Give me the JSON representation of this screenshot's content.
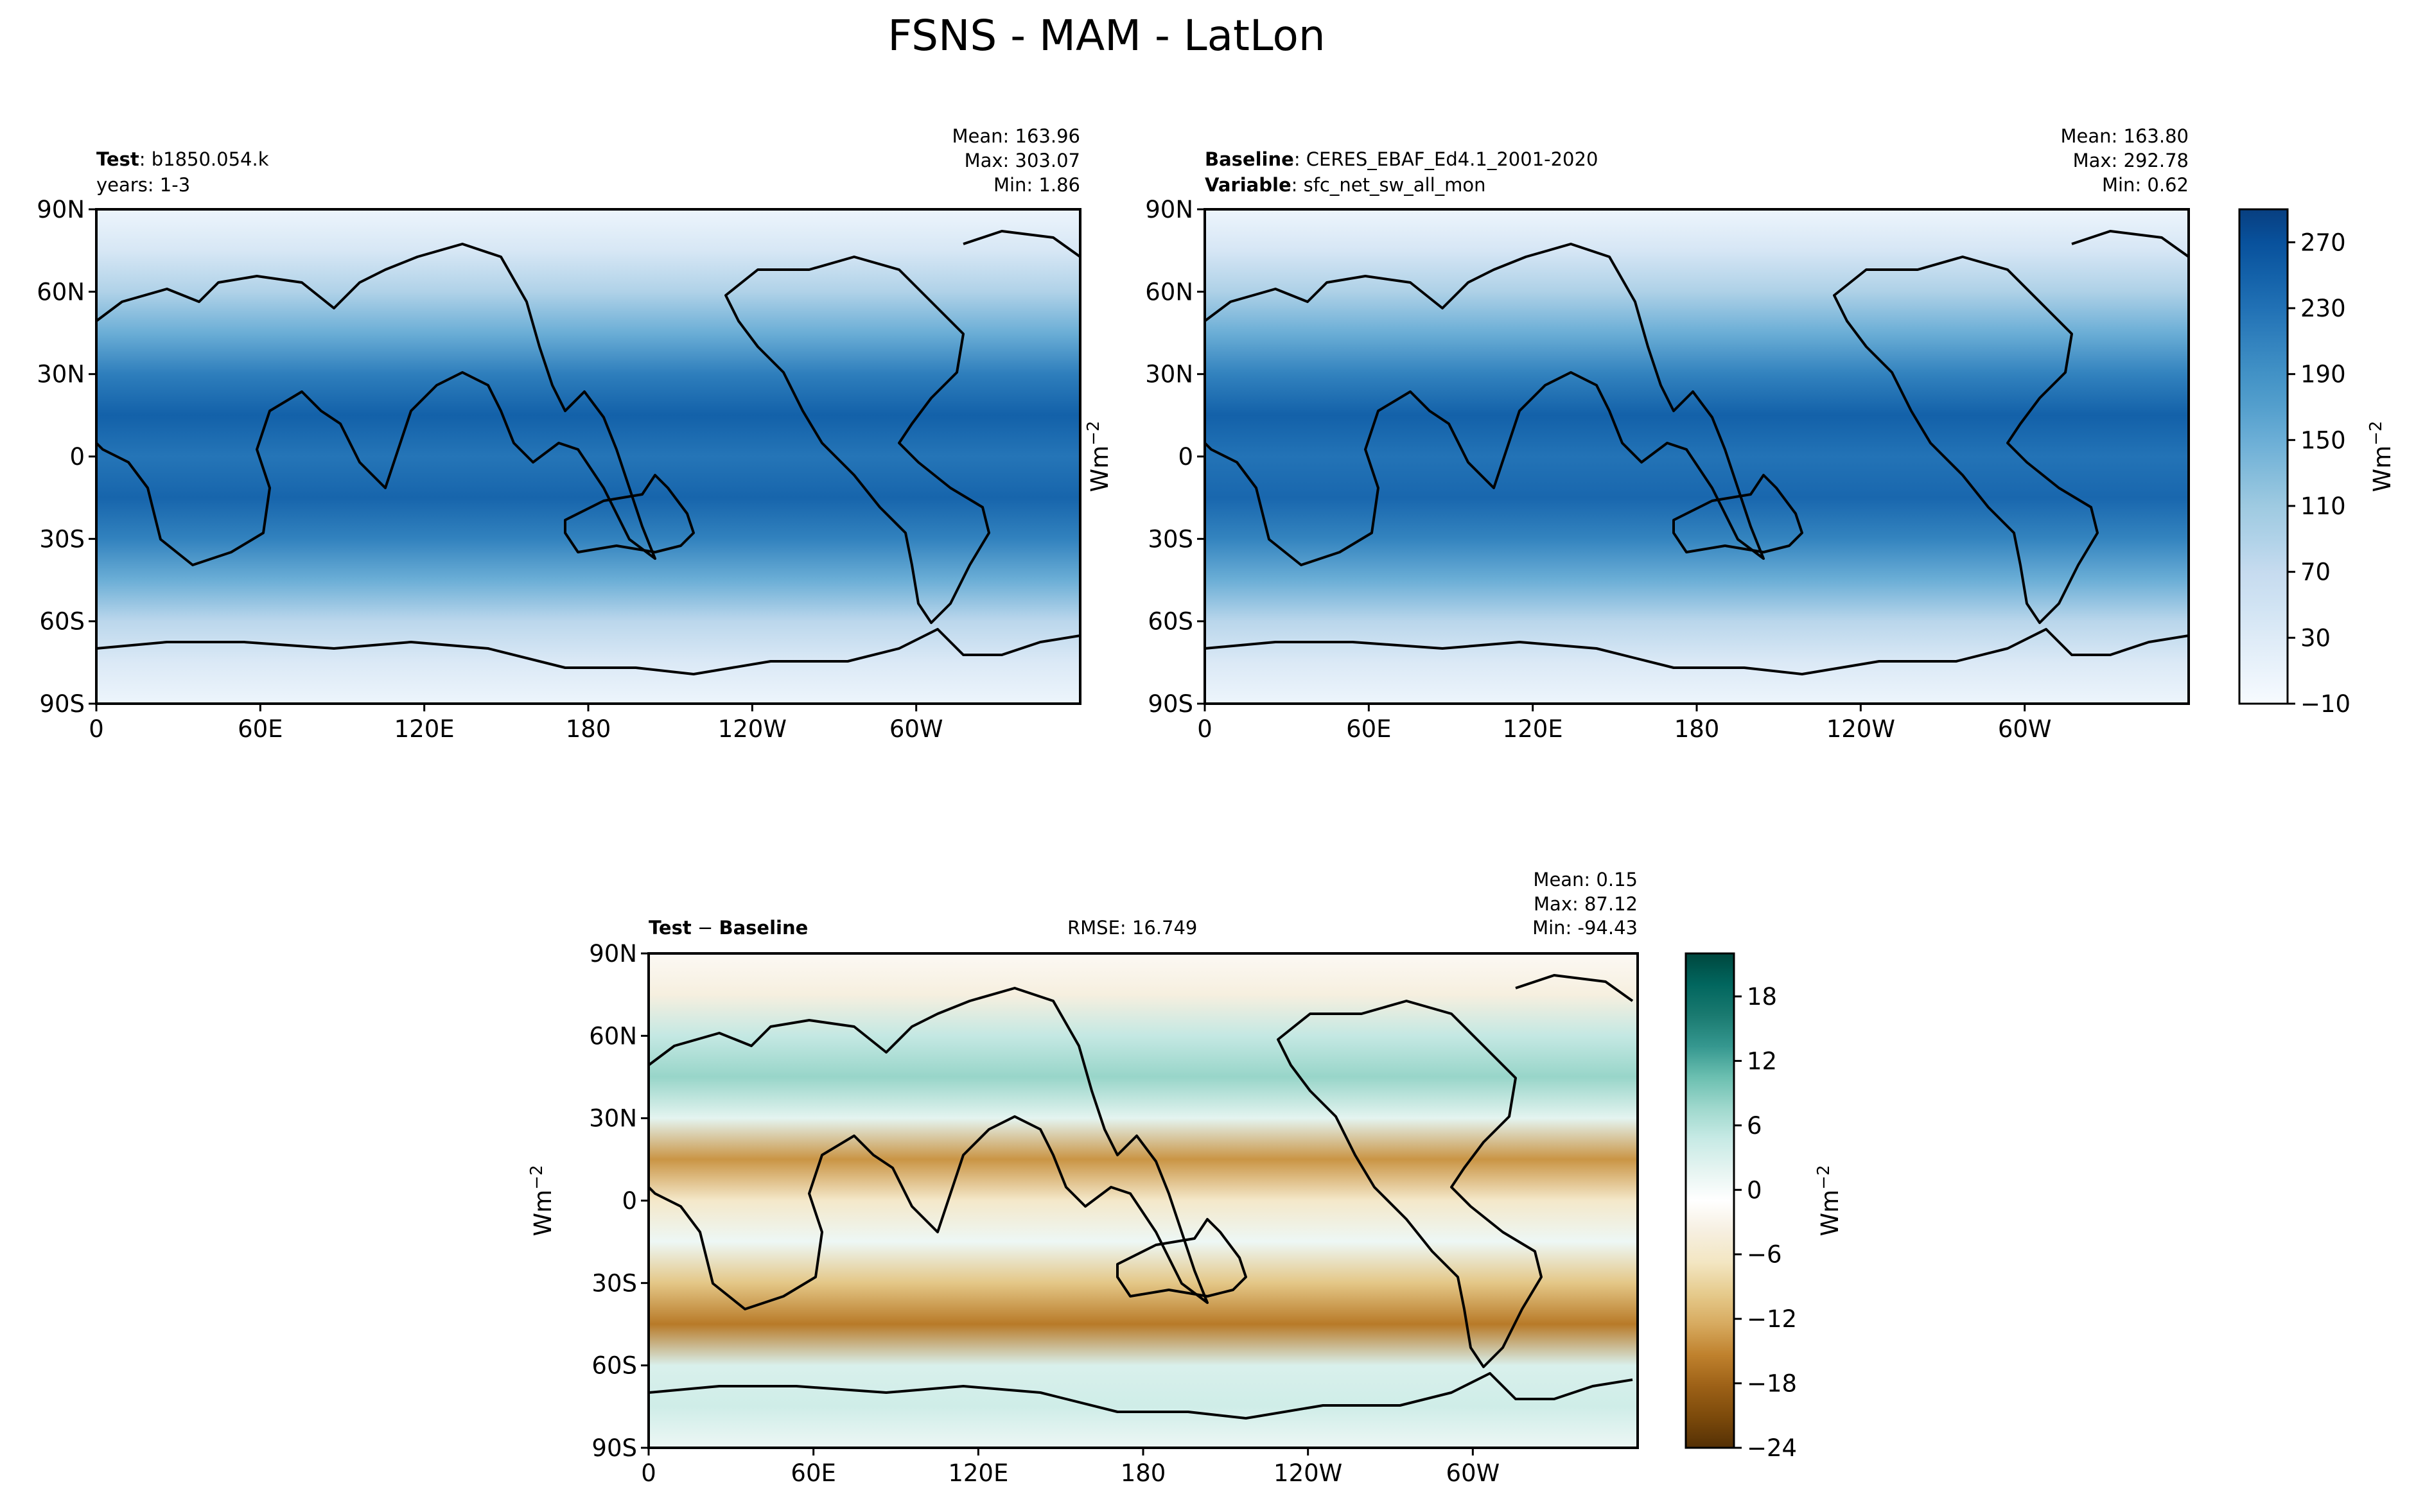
{
  "figure": {
    "title": "FSNS - MAM - LatLon"
  },
  "chart_data": [
    {
      "type": "heatmap",
      "panel": "test",
      "label_bold": "Test",
      "label_rest": ": b1850.054.k",
      "label_line2": "years: 1-3",
      "stats": {
        "mean": "Mean: 163.96",
        "max": "Max: 303.07",
        "min": "Min:  1.86"
      },
      "xlabel": "",
      "ylabel": "",
      "xticks": [
        "0",
        "60E",
        "120E",
        "180",
        "120W",
        "60W"
      ],
      "yticks": [
        "90N",
        "60N",
        "30N",
        "0",
        "30S",
        "60S",
        "90S"
      ],
      "xlim": [
        0,
        360
      ],
      "ylim": [
        -90,
        90
      ],
      "zonal_profile": {
        "lat": [
          90,
          75,
          60,
          45,
          30,
          15,
          0,
          -15,
          -30,
          -45,
          -60,
          -75,
          -90
        ],
        "value": [
          5,
          40,
          90,
          150,
          215,
          250,
          225,
          245,
          210,
          150,
          80,
          35,
          5
        ]
      }
    },
    {
      "type": "heatmap",
      "panel": "baseline",
      "label_bold": "Baseline",
      "label_rest": ": CERES_EBAF_Ed4.1_2001-2020",
      "label2_bold": "Variable",
      "label2_rest": ": sfc_net_sw_all_mon",
      "stats": {
        "mean": "Mean: 163.80",
        "max": "Max: 292.78",
        "min": "Min:  0.62"
      },
      "xlabel": "",
      "ylabel": "Wm",
      "ylabel_sup": "−2",
      "xticks": [
        "0",
        "60E",
        "120E",
        "180",
        "120W",
        "60W"
      ],
      "yticks": [
        "90N",
        "60N",
        "30N",
        "0",
        "30S",
        "60S",
        "90S"
      ],
      "xlim": [
        0,
        360
      ],
      "ylim": [
        -90,
        90
      ],
      "zonal_profile": {
        "lat": [
          90,
          75,
          60,
          45,
          30,
          15,
          0,
          -15,
          -30,
          -45,
          -60,
          -75,
          -90
        ],
        "value": [
          5,
          42,
          92,
          150,
          210,
          250,
          228,
          242,
          208,
          150,
          82,
          35,
          5
        ]
      },
      "colorbar": {
        "ticks": [
          "270",
          "230",
          "190",
          "150",
          "110",
          "70",
          "30",
          "−10"
        ],
        "tick_values": [
          270,
          230,
          190,
          150,
          110,
          70,
          30,
          -10
        ],
        "range": [
          -10,
          290
        ],
        "label": "Wm",
        "label_sup": "−2",
        "colors": [
          "#f7fbff",
          "#eaf3fb",
          "#deebf7",
          "#d0e3f3",
          "#c6dbef",
          "#b0d2e8",
          "#9ecae1",
          "#84bcdb",
          "#6baed6",
          "#549fcd",
          "#4292c6",
          "#3282be",
          "#2171b5",
          "#1361a9",
          "#08519c",
          "#083f80"
        ]
      }
    },
    {
      "type": "heatmap",
      "panel": "difference",
      "label_bold": "Test",
      "label_minus": " − ",
      "label_bold2": "Baseline",
      "rmse": "RMSE: 16.749",
      "stats": {
        "mean": "Mean:  0.15",
        "max": "Max: 87.12",
        "min": "Min: -94.43"
      },
      "xlabel": "",
      "ylabel": "Wm",
      "ylabel_sup": "−2",
      "xticks": [
        "0",
        "60E",
        "120E",
        "180",
        "120W",
        "60W"
      ],
      "yticks": [
        "90N",
        "60N",
        "30N",
        "0",
        "30S",
        "60S",
        "90S"
      ],
      "xlim": [
        0,
        360
      ],
      "ylim": [
        -90,
        90
      ],
      "zonal_profile": {
        "lat": [
          90,
          75,
          60,
          45,
          30,
          15,
          0,
          -15,
          -30,
          -45,
          -60,
          -75,
          -90
        ],
        "value": [
          -2,
          -4,
          5,
          8,
          2,
          -14,
          -6,
          1,
          -10,
          -16,
          3,
          4,
          1
        ]
      },
      "colorbar": {
        "ticks": [
          "18",
          "12",
          "6",
          "0",
          "−6",
          "−12",
          "−18",
          "−24"
        ],
        "tick_values": [
          18,
          12,
          6,
          0,
          -6,
          -12,
          -18,
          -24
        ],
        "range": [
          -24,
          22
        ],
        "label": "Wm",
        "label_sup": "−2",
        "colors": [
          "#543005",
          "#7c4a0b",
          "#9d6117",
          "#bf812d",
          "#d7aa5f",
          "#e6cb8d",
          "#f3e6c2",
          "#f6efe0",
          "#ffffff",
          "#e5f4f1",
          "#c7eae5",
          "#9fd8cd",
          "#6bbfb0",
          "#35978f",
          "#1a7a70",
          "#01665e",
          "#00473e"
        ]
      }
    }
  ]
}
